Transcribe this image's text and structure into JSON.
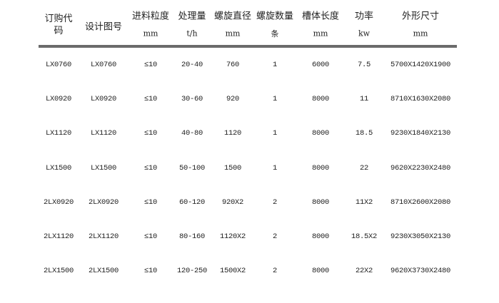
{
  "headers": [
    {
      "label": "订购代码",
      "unit": ""
    },
    {
      "label": "设计图号",
      "unit": ""
    },
    {
      "label": "进料粒度",
      "unit": "mm"
    },
    {
      "label": "处理量",
      "unit": "t/h"
    },
    {
      "label": "螺旋直径",
      "unit": "mm"
    },
    {
      "label": "螺旋数量",
      "unit": "条"
    },
    {
      "label": "槽体长度",
      "unit": "mm"
    },
    {
      "label": "功率",
      "unit": "kw"
    },
    {
      "label": "外形尺寸",
      "unit": "mm"
    }
  ],
  "rows": [
    [
      "LX0760",
      "LX0760",
      "≤10",
      "20-40",
      "760",
      "1",
      "6000",
      "7.5",
      "5700X1420X1900"
    ],
    [
      "LX0920",
      "LX0920",
      "≤10",
      "30-60",
      "920",
      "1",
      "8000",
      "11",
      "8710X1630X2080"
    ],
    [
      "LX1120",
      "LX1120",
      "≤10",
      "40-80",
      "1120",
      "1",
      "8000",
      "18.5",
      "9230X1840X2130"
    ],
    [
      "LX1500",
      "LX1500",
      "≤10",
      "50-100",
      "1500",
      "1",
      "8000",
      "22",
      "9620X2230X2480"
    ],
    [
      "2LX0920",
      "2LX0920",
      "≤10",
      "60-120",
      "920X2",
      "2",
      "8000",
      "11X2",
      "8710X2600X2080"
    ],
    [
      "2LX1120",
      "2LX1120",
      "≤10",
      "80-160",
      "1120X2",
      "2",
      "8000",
      "18.5X2",
      "9230X3050X2130"
    ],
    [
      "2LX1500",
      "2LX1500",
      "≤10",
      "120-250",
      "1500X2",
      "2",
      "8000",
      "22X2",
      "9620X3730X2480"
    ]
  ]
}
